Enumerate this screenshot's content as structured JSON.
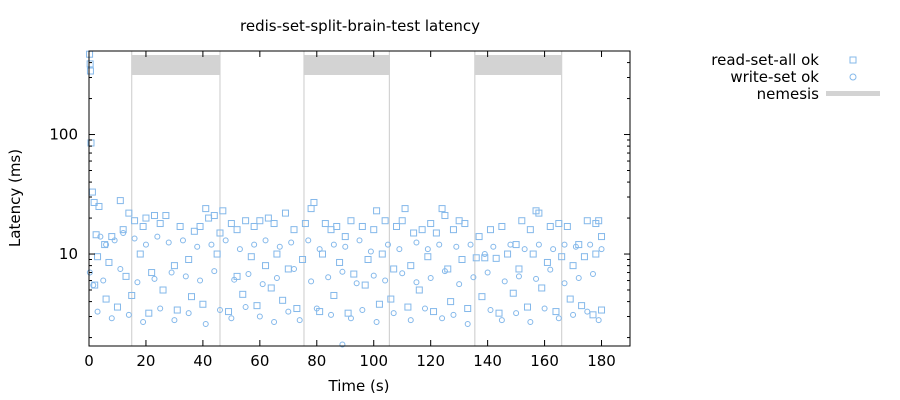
{
  "chart_data": {
    "type": "scatter",
    "title": "redis-set-split-brain-test latency",
    "xlabel": "Time (s)",
    "ylabel": "Latency (ms)",
    "xlim": [
      0,
      190
    ],
    "ylim": [
      1.7,
      500
    ],
    "yscale": "log",
    "x_ticks": [
      0,
      20,
      40,
      60,
      80,
      100,
      120,
      140,
      160,
      180
    ],
    "y_ticks": [
      10,
      100
    ],
    "grid": false,
    "legend_position": "outside-right-top",
    "series": [
      {
        "name": "read-set-all ok",
        "marker": "square",
        "color": "#84b8ea",
        "points": [
          [
            0.2,
            470
          ],
          [
            0.4,
            390
          ],
          [
            0.5,
            340
          ],
          [
            0.7,
            85
          ],
          [
            1.2,
            33
          ],
          [
            1.8,
            27
          ],
          [
            3.5,
            25
          ],
          [
            2.5,
            14.5
          ],
          [
            5.5,
            12
          ],
          [
            8,
            14
          ],
          [
            11,
            28
          ],
          [
            12,
            16
          ],
          [
            14,
            22
          ],
          [
            16,
            19
          ],
          [
            19,
            17
          ],
          [
            20,
            20
          ],
          [
            23,
            21
          ],
          [
            25,
            18
          ],
          [
            27,
            21
          ],
          [
            32,
            17
          ],
          [
            37,
            15.5
          ],
          [
            39,
            17
          ],
          [
            41,
            24
          ],
          [
            42,
            20
          ],
          [
            44,
            21
          ],
          [
            46,
            15
          ],
          [
            47,
            23
          ],
          [
            50,
            18
          ],
          [
            52,
            16
          ],
          [
            55,
            19
          ],
          [
            58,
            17
          ],
          [
            60,
            19
          ],
          [
            63,
            20
          ],
          [
            65,
            18
          ],
          [
            69,
            22
          ],
          [
            72,
            16
          ],
          [
            76,
            18
          ],
          [
            78,
            24
          ],
          [
            79,
            27
          ],
          [
            83,
            18
          ],
          [
            85,
            16
          ],
          [
            87,
            17
          ],
          [
            90,
            14
          ],
          [
            92,
            19
          ],
          [
            96,
            17
          ],
          [
            100,
            16
          ],
          [
            101,
            23
          ],
          [
            104,
            19
          ],
          [
            108,
            17
          ],
          [
            110,
            19
          ],
          [
            111,
            24
          ],
          [
            114,
            15
          ],
          [
            117,
            16
          ],
          [
            120,
            18
          ],
          [
            122,
            15
          ],
          [
            124,
            24
          ],
          [
            125,
            21
          ],
          [
            128,
            16
          ],
          [
            130,
            19
          ],
          [
            132,
            18
          ],
          [
            137,
            14
          ],
          [
            141,
            16
          ],
          [
            145,
            17
          ],
          [
            150,
            12
          ],
          [
            152,
            19
          ],
          [
            155,
            16
          ],
          [
            157,
            23
          ],
          [
            158,
            22
          ],
          [
            162,
            17
          ],
          [
            165,
            18
          ],
          [
            168,
            17
          ],
          [
            172,
            12
          ],
          [
            175,
            19
          ],
          [
            178,
            18
          ],
          [
            179,
            19
          ],
          [
            180,
            14
          ],
          [
            3,
            9.5
          ],
          [
            7,
            8.5
          ],
          [
            13,
            6.5
          ],
          [
            18,
            10
          ],
          [
            22,
            7
          ],
          [
            30,
            8
          ],
          [
            35,
            9
          ],
          [
            45,
            10
          ],
          [
            52,
            6.5
          ],
          [
            57,
            9.5
          ],
          [
            62,
            8
          ],
          [
            66,
            10
          ],
          [
            70,
            7.5
          ],
          [
            75,
            9
          ],
          [
            82,
            10
          ],
          [
            88,
            8.5
          ],
          [
            93,
            6.8
          ],
          [
            98,
            9
          ],
          [
            103,
            10
          ],
          [
            107,
            7.5
          ],
          [
            113,
            8
          ],
          [
            119,
            9.5
          ],
          [
            126,
            7.5
          ],
          [
            131,
            9
          ],
          [
            136,
            9.3
          ],
          [
            139,
            9.3
          ],
          [
            143,
            9.2
          ],
          [
            147,
            10
          ],
          [
            151,
            7.5
          ],
          [
            156,
            10
          ],
          [
            161,
            8.5
          ],
          [
            166,
            9.5
          ],
          [
            170,
            8
          ],
          [
            174,
            9.5
          ],
          [
            178,
            10
          ],
          [
            2,
            5.5
          ],
          [
            6,
            4.2
          ],
          [
            10,
            3.6
          ],
          [
            15,
            4.5
          ],
          [
            21,
            3.2
          ],
          [
            26,
            5
          ],
          [
            31,
            3.4
          ],
          [
            36,
            4.4
          ],
          [
            40,
            3.8
          ],
          [
            49,
            3.3
          ],
          [
            54,
            4.6
          ],
          [
            59,
            3.7
          ],
          [
            64,
            5.2
          ],
          [
            68,
            4.1
          ],
          [
            73,
            3.5
          ],
          [
            81,
            3.3
          ],
          [
            86,
            4.5
          ],
          [
            91,
            3.2
          ],
          [
            97,
            5.5
          ],
          [
            102,
            3.8
          ],
          [
            106,
            4.2
          ],
          [
            112,
            3.6
          ],
          [
            116,
            5
          ],
          [
            121,
            3.3
          ],
          [
            127,
            4
          ],
          [
            133,
            3.5
          ],
          [
            138,
            4.4
          ],
          [
            144,
            3.2
          ],
          [
            149,
            4.7
          ],
          [
            154,
            3.6
          ],
          [
            159,
            5.2
          ],
          [
            164,
            3.3
          ],
          [
            169,
            4.2
          ],
          [
            173,
            3.7
          ],
          [
            177,
            3.1
          ],
          [
            180,
            3.4
          ]
        ]
      },
      {
        "name": "write-set ok",
        "marker": "circle",
        "color": "#84b8ea",
        "points": [
          [
            0.3,
            7
          ],
          [
            1.5,
            5.5
          ],
          [
            4,
            14
          ],
          [
            6,
            12
          ],
          [
            9,
            13
          ],
          [
            12,
            15
          ],
          [
            16,
            13.5
          ],
          [
            20,
            12
          ],
          [
            24,
            14
          ],
          [
            28,
            12.5
          ],
          [
            33,
            13
          ],
          [
            38,
            11.5
          ],
          [
            43,
            12
          ],
          [
            48,
            13
          ],
          [
            53,
            11
          ],
          [
            58,
            12
          ],
          [
            62,
            13
          ],
          [
            67,
            11.5
          ],
          [
            71,
            12.5
          ],
          [
            77,
            13
          ],
          [
            81,
            11
          ],
          [
            86,
            12
          ],
          [
            90,
            11.5
          ],
          [
            95,
            13
          ],
          [
            99,
            10.5
          ],
          [
            105,
            12
          ],
          [
            109,
            11
          ],
          [
            115,
            12.5
          ],
          [
            119,
            11
          ],
          [
            123,
            12
          ],
          [
            129,
            11.5
          ],
          [
            134,
            12
          ],
          [
            139,
            10
          ],
          [
            142,
            11.5
          ],
          [
            148,
            12
          ],
          [
            153,
            11
          ],
          [
            158,
            12
          ],
          [
            163,
            11
          ],
          [
            167,
            12
          ],
          [
            171,
            11.5
          ],
          [
            176,
            12
          ],
          [
            180,
            11
          ],
          [
            5,
            6
          ],
          [
            11,
            7.5
          ],
          [
            17,
            5.8
          ],
          [
            23,
            6.2
          ],
          [
            29,
            7
          ],
          [
            34,
            6.5
          ],
          [
            39,
            6
          ],
          [
            44,
            7.2
          ],
          [
            51,
            6.1
          ],
          [
            56,
            6.8
          ],
          [
            61,
            5.6
          ],
          [
            66,
            6.3
          ],
          [
            72,
            7.5
          ],
          [
            78,
            5.9
          ],
          [
            84,
            6.4
          ],
          [
            89,
            7.1
          ],
          [
            94,
            5.7
          ],
          [
            100,
            6.6
          ],
          [
            104,
            6
          ],
          [
            110,
            6.9
          ],
          [
            115,
            5.8
          ],
          [
            120,
            6.3
          ],
          [
            125,
            7.2
          ],
          [
            130,
            5.6
          ],
          [
            135,
            6.4
          ],
          [
            140,
            7
          ],
          [
            146,
            5.9
          ],
          [
            151,
            6.5
          ],
          [
            157,
            6.2
          ],
          [
            162,
            7.4
          ],
          [
            167,
            5.7
          ],
          [
            172,
            6.3
          ],
          [
            177,
            6.8
          ],
          [
            3,
            3.3
          ],
          [
            8,
            2.9
          ],
          [
            14,
            3.1
          ],
          [
            19,
            2.7
          ],
          [
            25,
            3.5
          ],
          [
            30,
            2.8
          ],
          [
            35,
            3.2
          ],
          [
            41,
            2.6
          ],
          [
            46,
            3.4
          ],
          [
            50,
            2.9
          ],
          [
            55,
            3.6
          ],
          [
            60,
            3
          ],
          [
            65,
            2.7
          ],
          [
            70,
            3.3
          ],
          [
            74,
            2.8
          ],
          [
            80,
            3.5
          ],
          [
            85,
            3.1
          ],
          [
            89,
            1.75
          ],
          [
            92,
            2.9
          ],
          [
            96,
            3.4
          ],
          [
            101,
            2.7
          ],
          [
            107,
            3.2
          ],
          [
            113,
            2.8
          ],
          [
            118,
            3.5
          ],
          [
            124,
            2.9
          ],
          [
            128,
            3.1
          ],
          [
            133,
            2.6
          ],
          [
            141,
            3.4
          ],
          [
            145,
            2.8
          ],
          [
            150,
            3.2
          ],
          [
            155,
            2.7
          ],
          [
            160,
            3.5
          ],
          [
            165,
            2.9
          ],
          [
            170,
            3.1
          ],
          [
            175,
            3.3
          ],
          [
            179,
            2.8
          ]
        ]
      }
    ],
    "nemesis": {
      "name": "nemesis",
      "color": "#d3d3d3",
      "intervals": [
        [
          15,
          46
        ],
        [
          75.5,
          105.5
        ],
        [
          135.5,
          166
        ]
      ]
    }
  }
}
